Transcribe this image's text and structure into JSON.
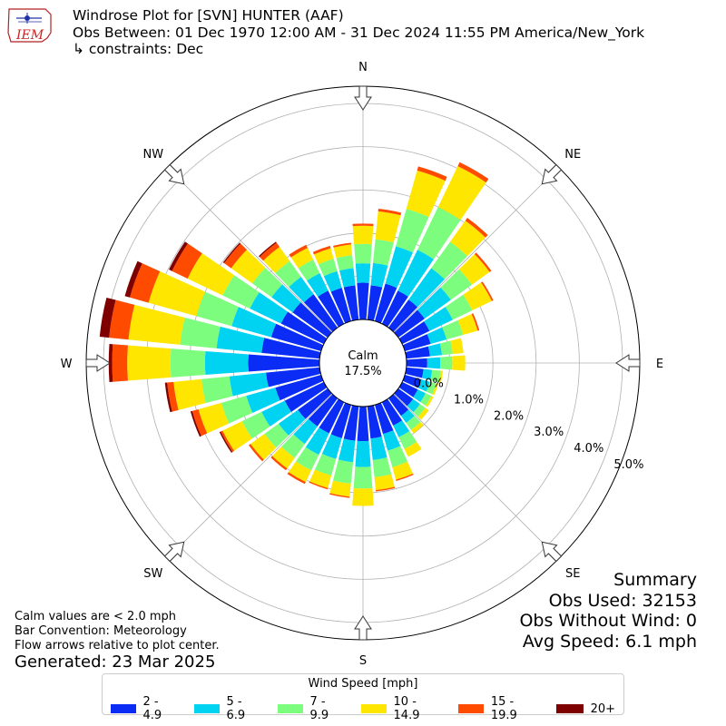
{
  "header": {
    "title": "Windrose Plot for [SVN] HUNTER (AAF)",
    "period": "Obs Between: 01 Dec 1970 12:00 AM - 31 Dec 2024 11:55 PM America/New_York",
    "constraints": "↳ constraints: Dec"
  },
  "logo": {
    "text": "IEM",
    "icon": "iem-logo-icon"
  },
  "notes": {
    "calm_def": "Calm values are < 2.0 mph",
    "bar_convention": "Bar Convention: Meteorology",
    "flow_arrows": "Flow arrows relative to plot center.",
    "generated": "Generated: 23 Mar 2025"
  },
  "summary": {
    "title": "Summary",
    "obs_used": "Obs Used: 32153",
    "obs_without_wind": "Obs Without Wind: 0",
    "avg_speed": "Avg Speed: 6.1 mph"
  },
  "legend": {
    "title": "Wind Speed [mph]",
    "items": [
      {
        "label": "2 - 4.9",
        "color": "#0a2cf5"
      },
      {
        "label": "5 - 6.9",
        "color": "#00d2f2"
      },
      {
        "label": "7 - 9.9",
        "color": "#7dfd7d"
      },
      {
        "label": "10 - 14.9",
        "color": "#ffe600"
      },
      {
        "label": "15 - 19.9",
        "color": "#ff4b00"
      },
      {
        "label": "20+",
        "color": "#7f0000"
      }
    ]
  },
  "chart_data": {
    "type": "windrose",
    "calm": {
      "label": "Calm",
      "value": "17.5%"
    },
    "radial_ticks": [
      "0.0%",
      "1.0%",
      "2.0%",
      "3.0%",
      "4.0%",
      "5.0%"
    ],
    "rmax": 5.4,
    "directions": [
      "N",
      "NE",
      "E",
      "SE",
      "S",
      "SW",
      "W",
      "NW"
    ],
    "bin_labels": [
      "2 - 4.9",
      "5 - 6.9",
      "7 - 9.9",
      "10 - 14.9",
      "15 - 19.9",
      "20+"
    ],
    "sectors": [
      {
        "dir_deg": 0,
        "values": [
          0.85,
          0.45,
          0.45,
          0.42,
          0.05,
          0.0
        ]
      },
      {
        "dir_deg": 10,
        "values": [
          0.8,
          0.52,
          0.55,
          0.65,
          0.06,
          0.0
        ]
      },
      {
        "dir_deg": 20,
        "values": [
          0.9,
          0.9,
          0.9,
          0.92,
          0.1,
          0.0
        ]
      },
      {
        "dir_deg": 30,
        "values": [
          0.85,
          1.05,
          1.1,
          1.05,
          0.1,
          0.0
        ]
      },
      {
        "dir_deg": 40,
        "values": [
          0.8,
          0.9,
          0.75,
          0.6,
          0.08,
          0.0
        ]
      },
      {
        "dir_deg": 50,
        "values": [
          0.75,
          0.75,
          0.6,
          0.5,
          0.05,
          0.0
        ]
      },
      {
        "dir_deg": 60,
        "values": [
          0.7,
          0.6,
          0.5,
          0.5,
          0.04,
          0.0
        ]
      },
      {
        "dir_deg": 70,
        "values": [
          0.62,
          0.38,
          0.4,
          0.35,
          0.04,
          0.0
        ]
      },
      {
        "dir_deg": 80,
        "values": [
          0.55,
          0.28,
          0.25,
          0.25,
          0.0,
          0.0
        ]
      },
      {
        "dir_deg": 90,
        "values": [
          0.48,
          0.3,
          0.28,
          0.3,
          0.0,
          0.0
        ]
      },
      {
        "dir_deg": 100,
        "values": [
          0.4,
          0.2,
          0.2,
          0.05,
          0.0,
          0.0
        ]
      },
      {
        "dir_deg": 110,
        "values": [
          0.4,
          0.2,
          0.15,
          0.05,
          0.0,
          0.0
        ]
      },
      {
        "dir_deg": 120,
        "values": [
          0.4,
          0.2,
          0.15,
          0.05,
          0.0,
          0.0
        ]
      },
      {
        "dir_deg": 130,
        "values": [
          0.42,
          0.2,
          0.15,
          0.1,
          0.0,
          0.0
        ]
      },
      {
        "dir_deg": 140,
        "values": [
          0.5,
          0.2,
          0.2,
          0.1,
          0.0,
          0.0
        ]
      },
      {
        "dir_deg": 150,
        "values": [
          0.6,
          0.3,
          0.3,
          0.2,
          0.0,
          0.0
        ]
      },
      {
        "dir_deg": 160,
        "values": [
          0.7,
          0.4,
          0.4,
          0.3,
          0.03,
          0.0
        ]
      },
      {
        "dir_deg": 170,
        "values": [
          0.75,
          0.5,
          0.4,
          0.3,
          0.03,
          0.0
        ]
      },
      {
        "dir_deg": 180,
        "values": [
          0.8,
          0.6,
          0.5,
          0.4,
          0.0,
          0.0
        ]
      },
      {
        "dir_deg": 190,
        "values": [
          0.8,
          0.5,
          0.5,
          0.3,
          0.03,
          0.0
        ]
      },
      {
        "dir_deg": 200,
        "values": [
          0.8,
          0.5,
          0.4,
          0.3,
          0.03,
          0.0
        ]
      },
      {
        "dir_deg": 210,
        "values": [
          0.8,
          0.55,
          0.4,
          0.3,
          0.05,
          0.0
        ]
      },
      {
        "dir_deg": 220,
        "values": [
          0.8,
          0.5,
          0.4,
          0.3,
          0.05,
          0.0
        ]
      },
      {
        "dir_deg": 230,
        "values": [
          0.85,
          0.55,
          0.4,
          0.4,
          0.05,
          0.0
        ]
      },
      {
        "dir_deg": 240,
        "values": [
          1.0,
          0.6,
          0.5,
          0.5,
          0.05,
          0.03
        ]
      },
      {
        "dir_deg": 250,
        "values": [
          1.1,
          0.7,
          0.6,
          0.55,
          0.15,
          0.04
        ]
      },
      {
        "dir_deg": 260,
        "values": [
          1.25,
          0.85,
          0.65,
          0.65,
          0.15,
          0.05
        ]
      },
      {
        "dir_deg": 270,
        "values": [
          1.65,
          1.0,
          0.8,
          1.0,
          0.35,
          0.08
        ]
      },
      {
        "dir_deg": 280,
        "values": [
          1.35,
          1.05,
          0.85,
          1.2,
          0.45,
          0.22
        ]
      },
      {
        "dir_deg": 290,
        "values": [
          1.2,
          0.95,
          0.85,
          1.15,
          0.45,
          0.12
        ]
      },
      {
        "dir_deg": 300,
        "values": [
          1.1,
          0.8,
          0.7,
          0.9,
          0.4,
          0.08
        ]
      },
      {
        "dir_deg": 310,
        "values": [
          1.0,
          0.6,
          0.55,
          0.6,
          0.2,
          0.03
        ]
      },
      {
        "dir_deg": 320,
        "values": [
          0.95,
          0.5,
          0.45,
          0.4,
          0.12,
          0.03
        ]
      },
      {
        "dir_deg": 330,
        "values": [
          0.85,
          0.45,
          0.35,
          0.3,
          0.08,
          0.0
        ]
      },
      {
        "dir_deg": 340,
        "values": [
          0.8,
          0.4,
          0.3,
          0.25,
          0.06,
          0.0
        ]
      },
      {
        "dir_deg": 350,
        "values": [
          0.8,
          0.4,
          0.3,
          0.25,
          0.04,
          0.0
        ]
      }
    ]
  }
}
